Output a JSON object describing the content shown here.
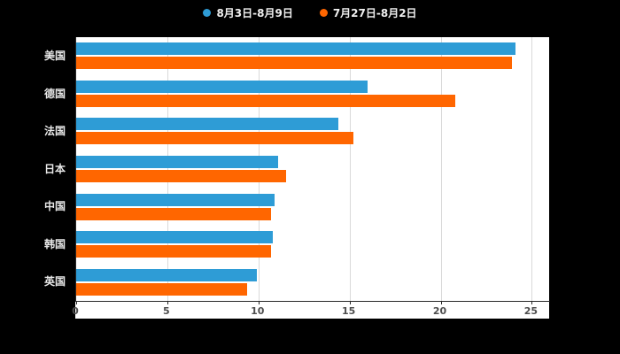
{
  "chart_data": {
    "type": "bar",
    "orientation": "horizontal",
    "title": "",
    "xlabel": "",
    "ylabel": "",
    "legend_position": "top",
    "grid": true,
    "xlim": [
      0,
      26
    ],
    "xticks": [
      0,
      5,
      10,
      15,
      20,
      25
    ],
    "categories": [
      "美国",
      "德国",
      "法国",
      "日本",
      "中国",
      "韩国",
      "英国"
    ],
    "series": [
      {
        "name": "8月3日-8月9日",
        "color": "#2E9CD6",
        "values": [
          24.1,
          16.0,
          14.4,
          11.1,
          10.9,
          10.8,
          9.9
        ]
      },
      {
        "name": "7月27日-8月2日",
        "color": "#FF6600",
        "values": [
          23.9,
          20.8,
          15.2,
          11.5,
          10.7,
          10.7,
          9.4
        ]
      }
    ]
  }
}
